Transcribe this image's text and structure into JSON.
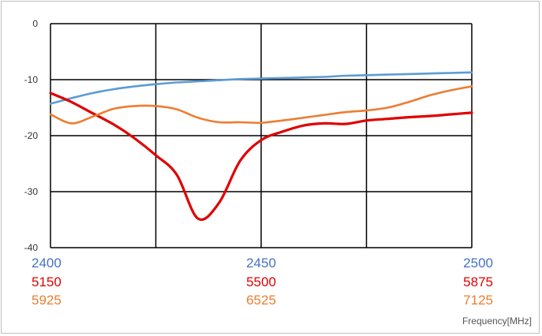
{
  "chart_data": {
    "type": "line",
    "title": "",
    "xlabel": "Frequency[MHz]",
    "ylabel": "",
    "ylim": [
      -40,
      0
    ],
    "yticks": [
      "0",
      "-10",
      "-20",
      "-30",
      "-40"
    ],
    "grid": true,
    "legend": "none",
    "x_axes": [
      {
        "ticks": [
          "2400",
          "2450",
          "2500"
        ],
        "color": "#4472c4"
      },
      {
        "ticks": [
          "5150",
          "5500",
          "5875"
        ],
        "color": "#e00000"
      },
      {
        "ticks": [
          "5925",
          "6525",
          "7125"
        ],
        "color": "#ed7d31"
      }
    ],
    "x_fraction": [
      0,
      0.05,
      0.1,
      0.15,
      0.2,
      0.25,
      0.3,
      0.35,
      0.4,
      0.45,
      0.5,
      0.55,
      0.6,
      0.65,
      0.7,
      0.75,
      0.8,
      0.85,
      0.9,
      0.95,
      1.0
    ],
    "series": [
      {
        "color": "#5b9bd5",
        "values": [
          -14.3,
          -13.3,
          -12.4,
          -11.7,
          -11.2,
          -10.8,
          -10.5,
          -10.3,
          -10.1,
          -9.9,
          -9.8,
          -9.7,
          -9.6,
          -9.5,
          -9.3,
          -9.2,
          -9.1,
          -9.0,
          -8.9,
          -8.8,
          -8.7
        ]
      },
      {
        "color": "#e00000",
        "values": [
          -12.4,
          -14.0,
          -16.0,
          -18.0,
          -20.5,
          -23.5,
          -27.0,
          -34.8,
          -32.0,
          -24.5,
          -20.8,
          -19.3,
          -18.2,
          -17.8,
          -17.9,
          -17.3,
          -17.0,
          -16.7,
          -16.5,
          -16.2,
          -15.9
        ]
      },
      {
        "color": "#ed7d31",
        "values": [
          -16.2,
          -17.8,
          -16.6,
          -15.2,
          -14.7,
          -14.7,
          -15.3,
          -16.8,
          -17.6,
          -17.6,
          -17.7,
          -17.3,
          -16.8,
          -16.3,
          -15.8,
          -15.5,
          -15.0,
          -14.0,
          -12.8,
          -11.9,
          -11.2
        ]
      }
    ]
  }
}
